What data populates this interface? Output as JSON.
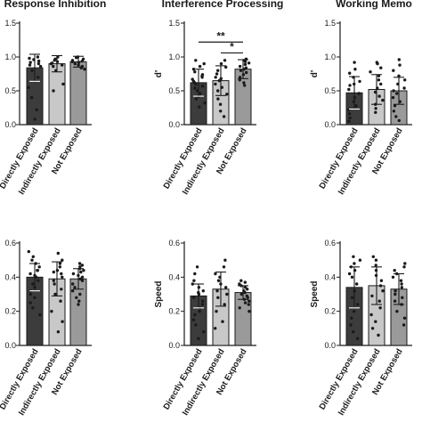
{
  "chart_data": [
    {
      "type": "bar",
      "title": "Response Inhibition",
      "ylabel": "",
      "yticks": [
        "0.0",
        "0.5",
        "1.0",
        "1.5"
      ],
      "ylim": [
        0,
        1.5
      ],
      "categories": [
        "Directly Exposed",
        "Indirectly Exposed",
        "Not Exposed"
      ],
      "values": [
        0.84,
        0.9,
        0.93
      ],
      "error": [
        0.2,
        0.12,
        0.08
      ],
      "bar_colors": [
        "#3c3c3c",
        "#c8c8c8",
        "#9a9a9a"
      ],
      "points": [
        [
          1.0,
          0.98,
          0.96,
          0.94,
          0.92,
          0.9,
          0.88,
          0.86,
          0.8,
          0.7,
          0.55,
          0.4,
          0.22,
          0.08
        ],
        [
          1.0,
          0.97,
          0.95,
          0.93,
          0.91,
          0.9,
          0.88,
          0.86,
          0.8,
          0.6,
          0.5
        ],
        [
          1.0,
          0.99,
          0.97,
          0.95,
          0.94,
          0.93,
          0.92,
          0.9,
          0.88,
          0.86,
          0.84,
          0.82
        ]
      ],
      "significance": []
    },
    {
      "type": "bar",
      "title": "Interference Processing",
      "ylabel": "d'",
      "yticks": [
        "0.0",
        "0.5",
        "1.0",
        "1.5"
      ],
      "ylim": [
        0,
        1.5
      ],
      "categories": [
        "Directly Exposed",
        "Indirectly Exposed",
        "Not Exposed"
      ],
      "values": [
        0.62,
        0.65,
        0.82
      ],
      "error": [
        0.2,
        0.22,
        0.14
      ],
      "bar_colors": [
        "#3c3c3c",
        "#c8c8c8",
        "#9a9a9a"
      ],
      "points": [
        [
          0.95,
          0.9,
          0.86,
          0.82,
          0.78,
          0.74,
          0.7,
          0.67,
          0.64,
          0.6,
          0.57,
          0.54,
          0.5,
          0.46,
          0.42,
          0.38,
          0.32,
          0.26,
          0.62,
          0.72
        ],
        [
          0.95,
          0.9,
          0.85,
          0.8,
          0.75,
          0.7,
          0.65,
          0.6,
          0.55,
          0.5,
          0.45,
          0.38,
          0.3,
          0.2,
          0.12,
          0.68
        ],
        [
          0.97,
          0.95,
          0.93,
          0.91,
          0.89,
          0.86,
          0.84,
          0.82,
          0.8,
          0.77,
          0.74,
          0.7,
          0.66,
          0.62,
          0.58
        ]
      ],
      "significance": [
        {
          "from": 0,
          "to": 2,
          "y": 1.22,
          "label": "**"
        },
        {
          "from": 1,
          "to": 2,
          "y": 1.06,
          "label": "*"
        }
      ]
    },
    {
      "type": "bar",
      "title": "Working Memo",
      "ylabel": "d'",
      "yticks": [
        "0.0",
        "0.5",
        "1.0",
        "1.5"
      ],
      "ylim": [
        0,
        1.5
      ],
      "categories": [
        "Directly Exposed",
        "Indirectly Exposed",
        "Not Exposed"
      ],
      "values": [
        0.47,
        0.52,
        0.5
      ],
      "error": [
        0.24,
        0.22,
        0.2
      ],
      "bar_colors": [
        "#3c3c3c",
        "#c8c8c8",
        "#9a9a9a"
      ],
      "points": [
        [
          0.92,
          0.82,
          0.76,
          0.7,
          0.64,
          0.58,
          0.52,
          0.46,
          0.4,
          0.34,
          0.28,
          0.22,
          0.16,
          0.1,
          0.05,
          0.6
        ],
        [
          0.92,
          0.9,
          0.84,
          0.78,
          0.72,
          0.66,
          0.6,
          0.54,
          0.48,
          0.42,
          0.36,
          0.3,
          0.24,
          0.18
        ],
        [
          0.96,
          0.88,
          0.8,
          0.72,
          0.66,
          0.6,
          0.54,
          0.5,
          0.46,
          0.4,
          0.34,
          0.28,
          0.2,
          0.12,
          0.06
        ]
      ],
      "significance": []
    },
    {
      "type": "bar",
      "title": "",
      "ylabel": "",
      "yticks": [
        "0.0",
        "0.2",
        "0.4",
        "0.6"
      ],
      "ylim": [
        0,
        0.6
      ],
      "categories": [
        "Directly Exposed",
        "Indirectly Exposed",
        "Not Exposed"
      ],
      "values": [
        0.4,
        0.39,
        0.39
      ],
      "error": [
        0.08,
        0.1,
        0.06
      ],
      "bar_colors": [
        "#3c3c3c",
        "#c8c8c8",
        "#9a9a9a"
      ],
      "points": [
        [
          0.55,
          0.52,
          0.5,
          0.48,
          0.46,
          0.44,
          0.42,
          0.4,
          0.38,
          0.36,
          0.34,
          0.32,
          0.3,
          0.28,
          0.25,
          0.22,
          0.18,
          0.44,
          0.41
        ],
        [
          0.54,
          0.5,
          0.48,
          0.46,
          0.44,
          0.42,
          0.4,
          0.38,
          0.36,
          0.33,
          0.3,
          0.26,
          0.2,
          0.14,
          0.08,
          0.43
        ],
        [
          0.48,
          0.47,
          0.46,
          0.45,
          0.44,
          0.43,
          0.42,
          0.41,
          0.4,
          0.39,
          0.38,
          0.36,
          0.34,
          0.32,
          0.3,
          0.28,
          0.26,
          0.24
        ]
      ],
      "significance": []
    },
    {
      "type": "bar",
      "title": "",
      "ylabel": "Speed",
      "yticks": [
        "0.0",
        "0.2",
        "0.4",
        "0.6"
      ],
      "ylim": [
        0,
        0.6
      ],
      "categories": [
        "Directly Exposed",
        "Indirectly Exposed",
        "Not Exposed"
      ],
      "values": [
        0.29,
        0.33,
        0.31
      ],
      "error": [
        0.07,
        0.1,
        0.04
      ],
      "bar_colors": [
        "#3c3c3c",
        "#c8c8c8",
        "#9a9a9a"
      ],
      "points": [
        [
          0.46,
          0.42,
          0.38,
          0.36,
          0.34,
          0.32,
          0.3,
          0.28,
          0.26,
          0.24,
          0.22,
          0.2,
          0.18,
          0.15,
          0.12,
          0.08,
          0.04,
          0.31
        ],
        [
          0.5,
          0.46,
          0.42,
          0.4,
          0.38,
          0.36,
          0.34,
          0.32,
          0.3,
          0.28,
          0.24,
          0.2,
          0.14,
          0.1
        ],
        [
          0.38,
          0.37,
          0.36,
          0.35,
          0.34,
          0.33,
          0.32,
          0.31,
          0.3,
          0.29,
          0.28,
          0.27,
          0.26,
          0.25,
          0.24,
          0.22,
          0.2
        ]
      ],
      "significance": []
    },
    {
      "type": "bar",
      "title": "",
      "ylabel": "Speed",
      "yticks": [
        "0.0",
        "0.2",
        "0.4",
        "0.6"
      ],
      "ylim": [
        0,
        0.6
      ],
      "categories": [
        "Directly Exposed",
        "Indirectly Exposed",
        "Not Exposed"
      ],
      "values": [
        0.34,
        0.35,
        0.33
      ],
      "error": [
        0.12,
        0.11,
        0.09
      ],
      "bar_colors": [
        "#3c3c3c",
        "#c8c8c8",
        "#9a9a9a"
      ],
      "points": [
        [
          0.52,
          0.5,
          0.48,
          0.46,
          0.44,
          0.4,
          0.36,
          0.32,
          0.28,
          0.24,
          0.2,
          0.16,
          0.12,
          0.08,
          0.04,
          0.42
        ],
        [
          0.52,
          0.5,
          0.47,
          0.44,
          0.41,
          0.38,
          0.35,
          0.32,
          0.29,
          0.26,
          0.22,
          0.18,
          0.14,
          0.1,
          0.06
        ],
        [
          0.48,
          0.46,
          0.44,
          0.42,
          0.4,
          0.38,
          0.36,
          0.34,
          0.32,
          0.3,
          0.28,
          0.26,
          0.24,
          0.2,
          0.16,
          0.12
        ]
      ],
      "significance": []
    }
  ]
}
